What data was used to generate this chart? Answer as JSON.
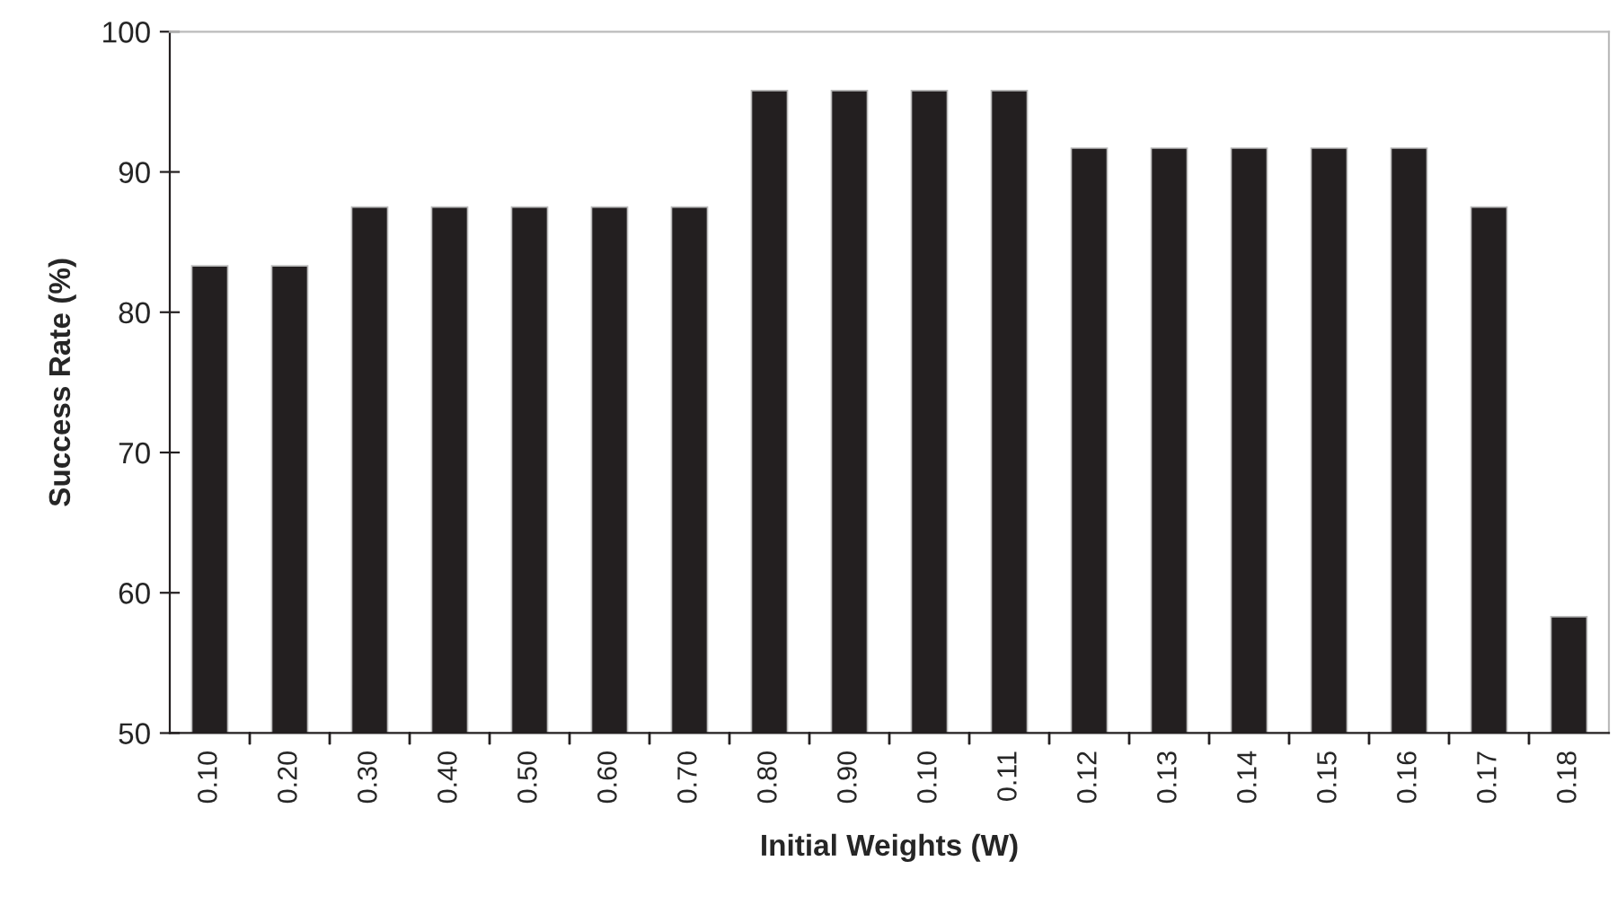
{
  "chart_data": {
    "type": "bar",
    "xlabel": "Initial Weights (W)",
    "ylabel": "Success Rate (%)",
    "categories": [
      "0.10",
      "0.20",
      "0.30",
      "0.40",
      "0.50",
      "0.60",
      "0.70",
      "0.80",
      "0.90",
      "0.10",
      "0.11",
      "0.12",
      "0.13",
      "0.14",
      "0.15",
      "0.16",
      "0.17",
      "0.18"
    ],
    "values": [
      83.3,
      83.3,
      87.5,
      87.5,
      87.5,
      87.5,
      87.5,
      95.8,
      95.8,
      95.8,
      95.8,
      91.7,
      91.7,
      91.7,
      91.7,
      91.7,
      87.5,
      58.3
    ],
    "color": "#231f20",
    "ylim": [
      50,
      100
    ],
    "yticks": [
      50,
      60,
      70,
      80,
      90,
      100
    ],
    "grid": false
  }
}
